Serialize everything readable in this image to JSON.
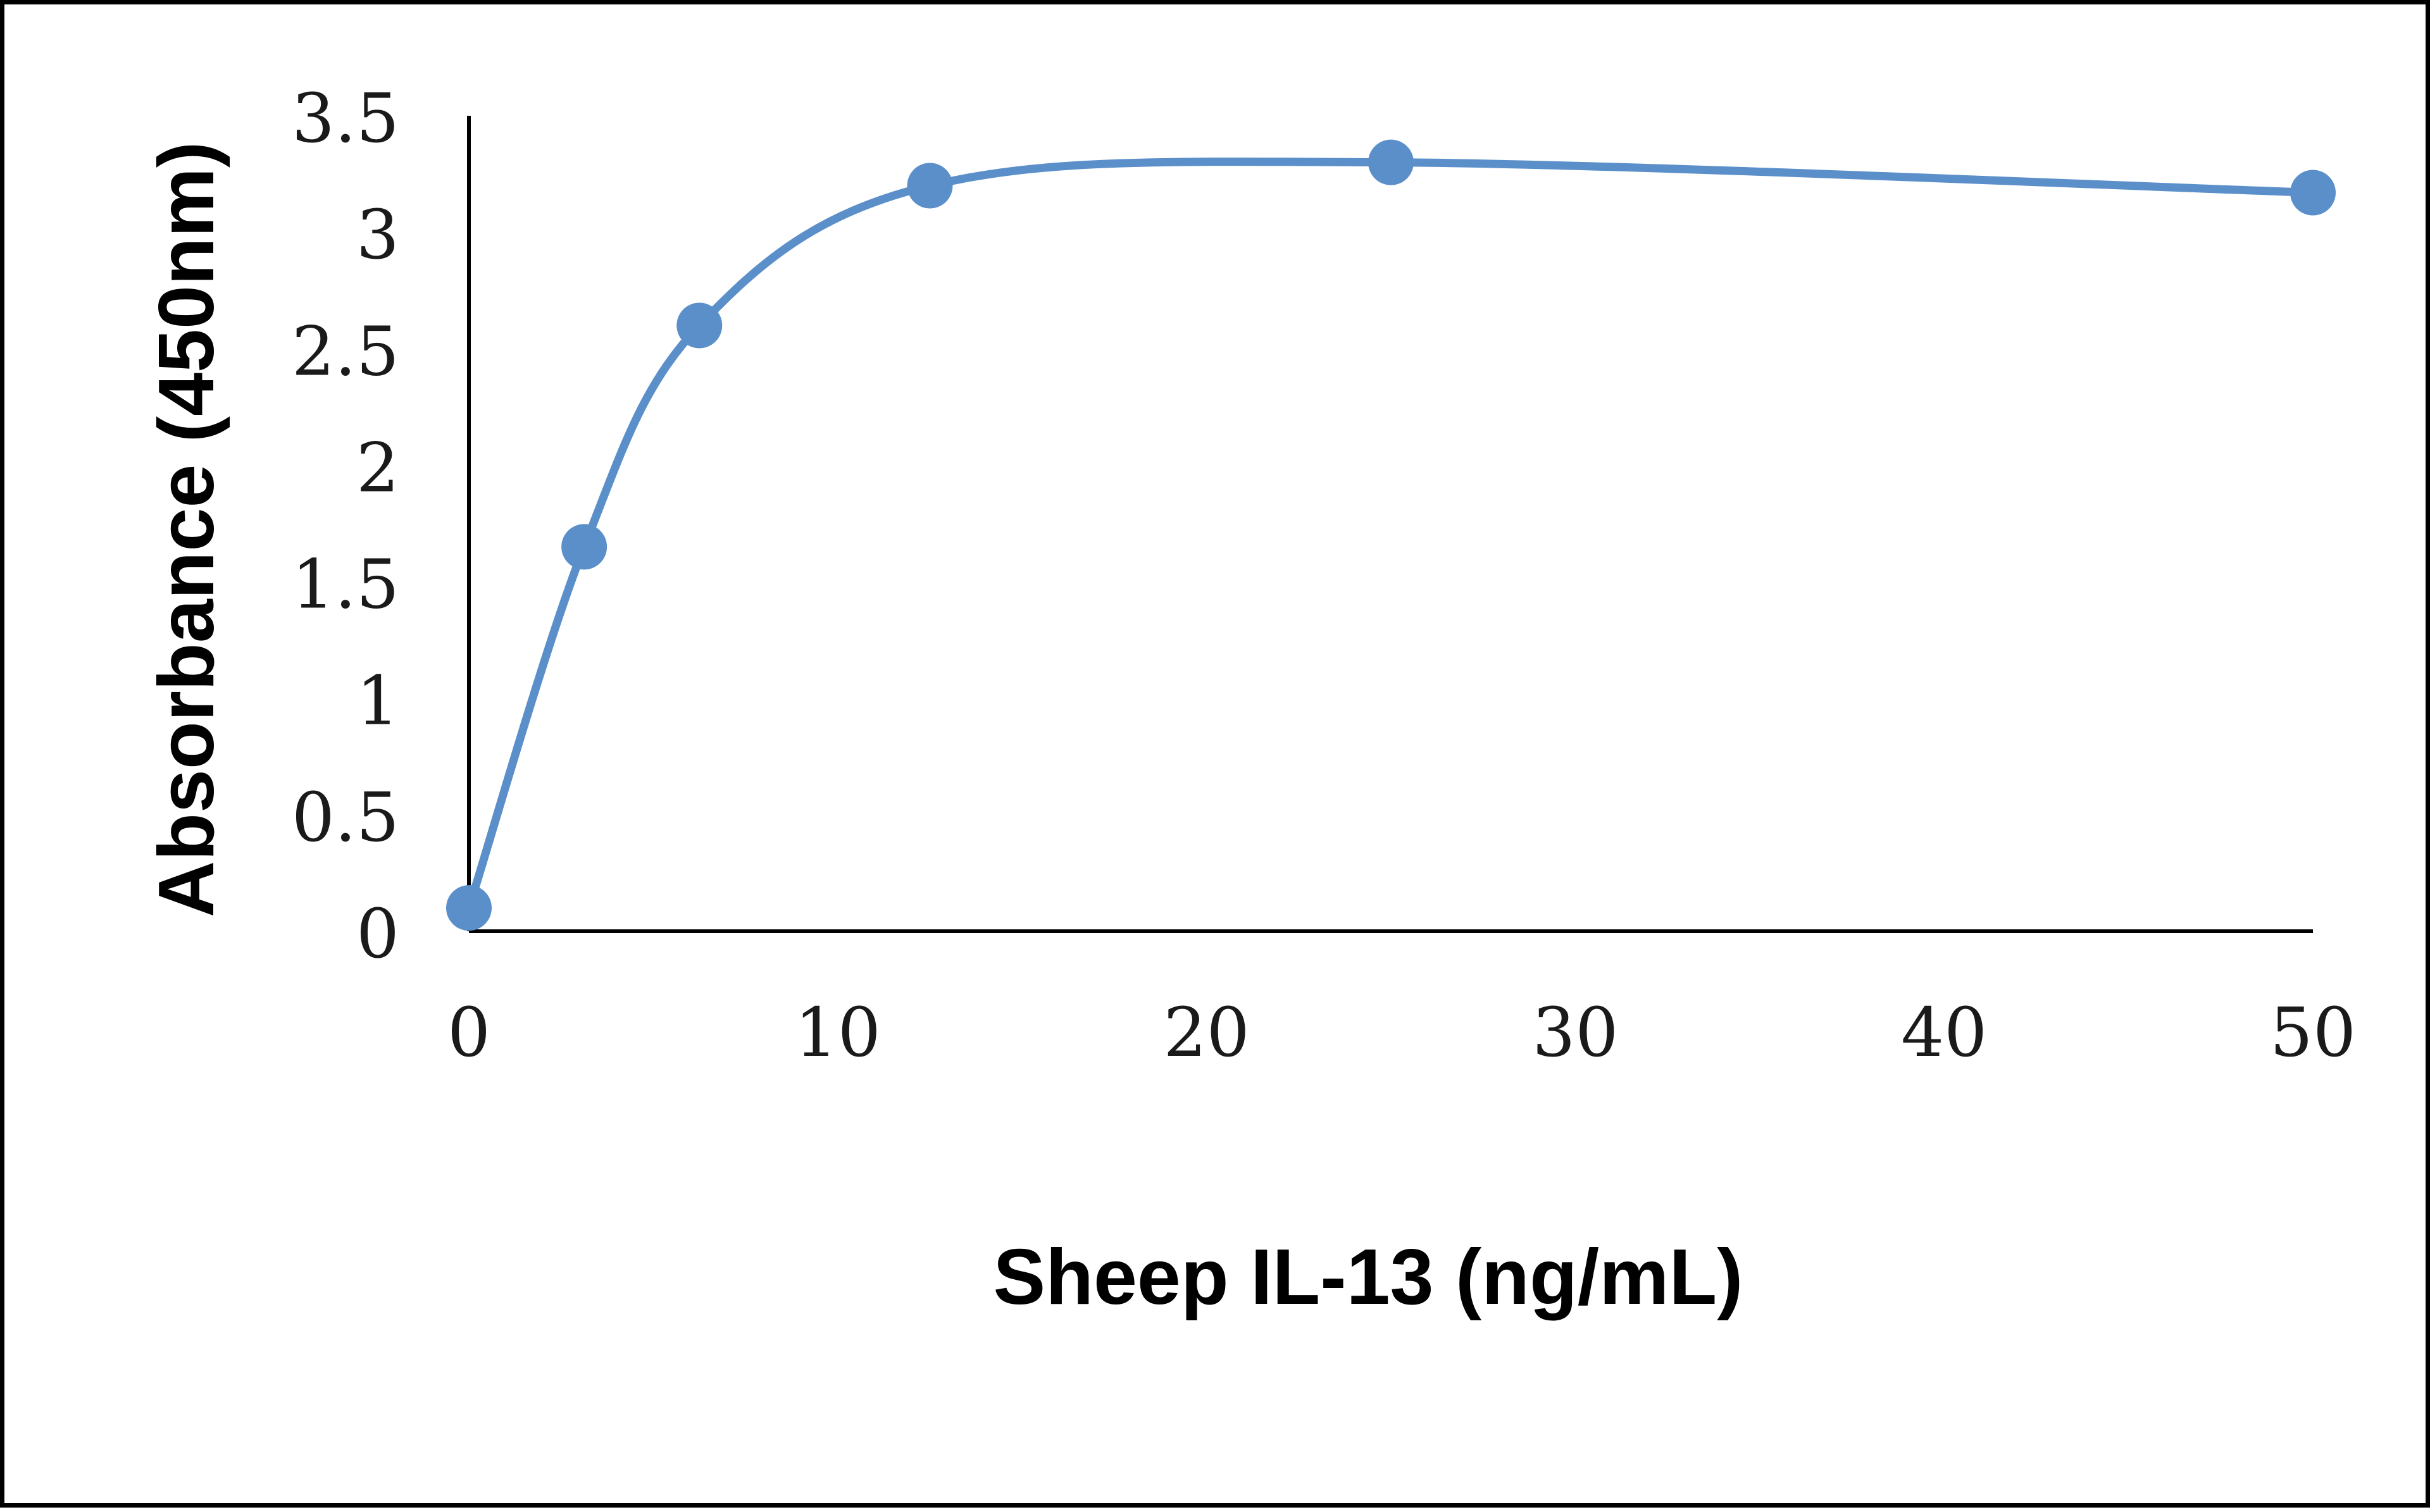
{
  "chart_data": {
    "type": "scatter",
    "xlabel": "Sheep IL-13 (ng/mL)",
    "ylabel": "Absorbance (450nm)",
    "xlim": [
      0,
      50
    ],
    "ylim": [
      0,
      3.5
    ],
    "x_ticks": [
      "0",
      "10",
      "20",
      "30",
      "40",
      "50"
    ],
    "y_ticks": [
      "0",
      "0.5",
      "1",
      "1.5",
      "2",
      "2.5",
      "3",
      "3.5"
    ],
    "series": [
      {
        "x": [
          0,
          3.125,
          6.25,
          12.5,
          25,
          50
        ],
        "y": [
          0.1,
          1.65,
          2.6,
          3.2,
          3.3,
          3.17
        ]
      }
    ],
    "line_style": "smoothed",
    "marker": "circle",
    "series_color": "#5b8fc9",
    "axis_color": "#000000",
    "grid": false,
    "legend": "none"
  }
}
